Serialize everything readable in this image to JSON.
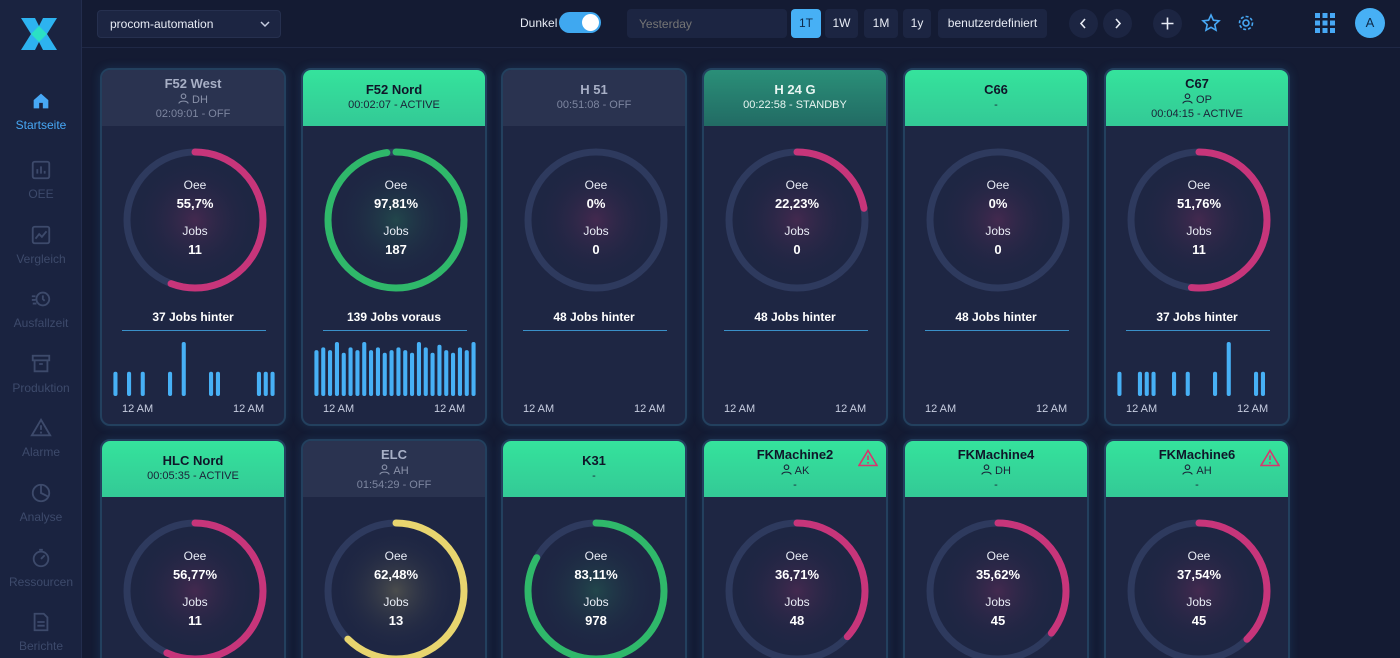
{
  "sidebar": {
    "items": [
      {
        "label": "Startseite",
        "icon": "home-icon",
        "active": true
      },
      {
        "label": "OEE",
        "icon": "bar-chart-icon",
        "active": false
      },
      {
        "label": "Vergleich",
        "icon": "line-chart-icon",
        "active": false
      },
      {
        "label": "Ausfallzeit",
        "icon": "stopwatch-icon",
        "active": false
      },
      {
        "label": "Produktion",
        "icon": "archive-icon",
        "active": false
      },
      {
        "label": "Alarme",
        "icon": "warning-icon",
        "active": false
      },
      {
        "label": "Analyse",
        "icon": "pie-chart-icon",
        "active": false
      },
      {
        "label": "Ressourcen",
        "icon": "gauge-icon",
        "active": false
      },
      {
        "label": "Berichte",
        "icon": "document-icon",
        "active": false
      }
    ]
  },
  "topbar": {
    "org": "procom-automation",
    "dark_mode_label": "Dunkel",
    "dark_mode_on": true,
    "date_placeholder": "Yesterday",
    "ranges": [
      {
        "label": "1T",
        "active": true
      },
      {
        "label": "1W",
        "active": false
      },
      {
        "label": "1M",
        "active": false
      },
      {
        "label": "1y",
        "active": false
      },
      {
        "label": "benutzerdefiniert",
        "active": false
      }
    ],
    "avatar_initial": "A"
  },
  "labels": {
    "oee": "Oee",
    "jobs": "Jobs"
  },
  "time_labels": {
    "start": "12 AM",
    "end": "12 AM"
  },
  "colors": {
    "accent": "#47b0f5",
    "active": "#35e39c",
    "good": "#2fb86a",
    "medium": "#e8d56f",
    "poor": "#c7357a",
    "off": "#2a3350",
    "track": "#2e3a5e"
  },
  "machines": [
    {
      "name": "F52 West",
      "operator": "DH",
      "status": "02:09:01 - OFF",
      "state": "off",
      "oee_text": "55,7%",
      "oee": 55.7,
      "jobs": "11",
      "diff": "37 Jobs hinter",
      "bars": [
        0.45,
        0,
        0.45,
        0,
        0.45,
        0,
        0,
        0,
        0.45,
        0,
        1,
        0,
        0,
        0,
        0.45,
        0.45,
        0,
        0,
        0,
        0,
        0,
        0.45,
        0.45,
        0.45
      ]
    },
    {
      "name": "F52 Nord",
      "operator": "",
      "status": "00:02:07 - ACTIVE",
      "state": "on",
      "oee_text": "97,81%",
      "oee": 97.81,
      "jobs": "187",
      "diff": "139 Jobs voraus",
      "bars": [
        0.85,
        0.9,
        0.85,
        1,
        0.8,
        0.9,
        0.85,
        1,
        0.85,
        0.9,
        0.8,
        0.85,
        0.9,
        0.85,
        0.8,
        1,
        0.9,
        0.8,
        0.95,
        0.85,
        0.8,
        0.9,
        0.85,
        1
      ]
    },
    {
      "name": "H 51",
      "operator": "",
      "status": "00:51:08 - OFF",
      "state": "off",
      "oee_text": "0%",
      "oee": 0,
      "jobs": "0",
      "diff": "48 Jobs hinter",
      "bars": []
    },
    {
      "name": "H 24 G",
      "operator": "",
      "status": "00:22:58 - STANDBY",
      "state": "standby",
      "oee_text": "22,23%",
      "oee": 22.23,
      "jobs": "0",
      "diff": "48 Jobs hinter",
      "bars": []
    },
    {
      "name": "C66",
      "operator": "",
      "status": "-",
      "state": "on",
      "oee_text": "0%",
      "oee": 0,
      "jobs": "0",
      "diff": "48 Jobs hinter",
      "bars": []
    },
    {
      "name": "C67",
      "operator": "OP",
      "status": "00:04:15 - ACTIVE",
      "state": "on",
      "oee_text": "51,76%",
      "oee": 51.76,
      "jobs": "11",
      "diff": "37 Jobs hinter",
      "bars": [
        0.45,
        0,
        0,
        0.45,
        0.45,
        0.45,
        0,
        0,
        0.45,
        0,
        0.45,
        0,
        0,
        0,
        0.45,
        0,
        1,
        0,
        0,
        0,
        0.45,
        0.45,
        0,
        0
      ]
    },
    {
      "name": "HLC Nord",
      "operator": "",
      "status": "00:05:35 - ACTIVE",
      "state": "on",
      "oee_text": "56,77%",
      "oee": 56.77,
      "jobs": "11",
      "diff": "",
      "bars": []
    },
    {
      "name": "ELC",
      "operator": "AH",
      "status": "01:54:29 - OFF",
      "state": "off",
      "oee_text": "62,48%",
      "oee": 62.48,
      "jobs": "13",
      "diff": "",
      "bars": []
    },
    {
      "name": "K31",
      "operator": "",
      "status": "-",
      "state": "on",
      "oee_text": "83,11%",
      "oee": 83.11,
      "jobs": "978",
      "diff": "",
      "bars": []
    },
    {
      "name": "FKMachine2",
      "operator": "AK",
      "status": "-",
      "state": "on",
      "warning": true,
      "oee_text": "36,71%",
      "oee": 36.71,
      "jobs": "48",
      "diff": "",
      "bars": []
    },
    {
      "name": "FKMachine4",
      "operator": "DH",
      "status": "-",
      "state": "on",
      "oee_text": "35,62%",
      "oee": 35.62,
      "jobs": "45",
      "diff": "",
      "bars": []
    },
    {
      "name": "FKMachine6",
      "operator": "AH",
      "status": "-",
      "state": "on",
      "warning": true,
      "oee_text": "37,54%",
      "oee": 37.54,
      "jobs": "45",
      "diff": "",
      "bars": []
    }
  ]
}
